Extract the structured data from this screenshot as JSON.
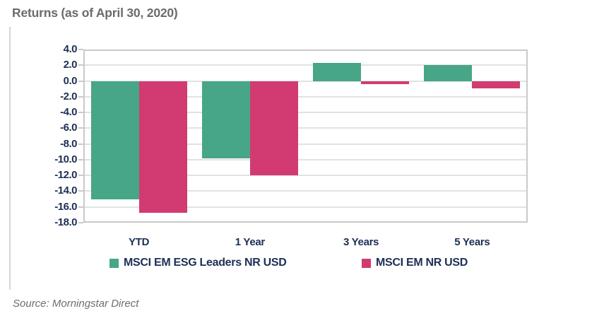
{
  "title": "Returns (as of April 30, 2020)",
  "source": "Source: Morningstar Direct",
  "colors": {
    "green": "#47a687",
    "pink": "#d13b72",
    "navy": "#1c2f55",
    "title_gray": "#6b6b6b",
    "gridline": "#e2e2e2",
    "plot_border": "#c9c9c9"
  },
  "chart_data": {
    "type": "bar",
    "title": "Returns (as of April 30, 2020)",
    "categories": [
      "YTD",
      "1 Year",
      "3 Years",
      "5 Years"
    ],
    "series": [
      {
        "name": "MSCI EM ESG Leaders NR USD",
        "color_key": "green",
        "values": [
          -15.0,
          -9.8,
          2.3,
          2.0
        ]
      },
      {
        "name": "MSCI EM NR USD",
        "color_key": "pink",
        "values": [
          -16.7,
          -12.0,
          -0.4,
          -0.9
        ]
      }
    ],
    "xlabel": "",
    "ylabel": "",
    "ylim": [
      -18,
      4
    ],
    "ytick_step": 2,
    "ytick_labels": [
      "4.0",
      "2.0",
      "0.0",
      "-2.0",
      "-4.0",
      "-6.0",
      "-8.0",
      "-10.0",
      "-12.0",
      "-14.0",
      "-16.0",
      "-18.0"
    ],
    "grid": true,
    "legend_position": "bottom"
  }
}
